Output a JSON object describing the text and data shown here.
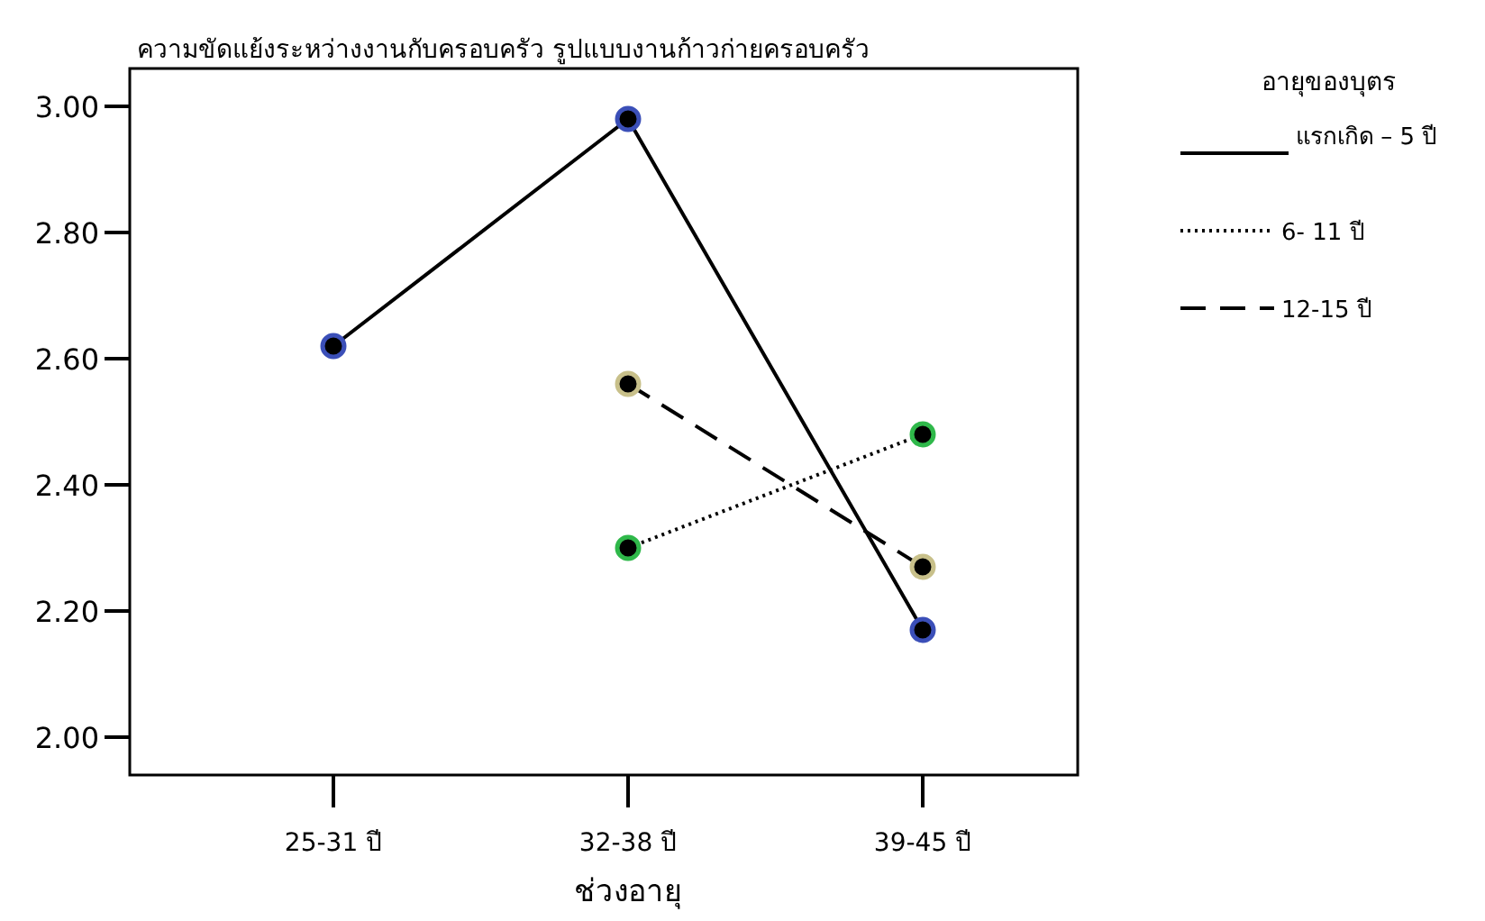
{
  "chart_data": {
    "type": "line",
    "title": "ความขัดแย้งระหว่างงานกับครอบครัว รูปแบบงานก้าวก่ายครอบครัว",
    "xlabel": "ช่วงอายุ",
    "legend_title": "อายุของบุตร",
    "categories": [
      "25-31 ปี",
      "32-38 ปี",
      "39-45 ปี"
    ],
    "series": [
      {
        "name": "แรกเกิด – 5 ปี",
        "color": "#000000",
        "colors": [
          "#3b4fb8",
          "#3b4fb8",
          "#3b4fb8"
        ],
        "line_style": "solid",
        "values": [
          2.62,
          2.98,
          2.17
        ]
      },
      {
        "name": "6- 11 ปี",
        "color": "#000000",
        "colors": [
          null,
          "#2fb84a",
          "#2fb84a"
        ],
        "line_style": "dotted",
        "values": [
          null,
          2.3,
          2.48
        ]
      },
      {
        "name": "12-15 ปี",
        "color": "#000000",
        "colors": [
          null,
          "#c8c08a",
          "#c8c08a"
        ],
        "line_style": "dashed",
        "values": [
          null,
          2.56,
          2.27
        ]
      }
    ],
    "ylim": [
      1.94,
      3.06
    ],
    "yticks": [
      {
        "value": 2.0,
        "label": "2.00"
      },
      {
        "value": 2.2,
        "label": "2.20"
      },
      {
        "value": 2.4,
        "label": "2.40"
      },
      {
        "value": 2.6,
        "label": "2.60"
      },
      {
        "value": 2.8,
        "label": "2.80"
      },
      {
        "value": 3.0,
        "label": "3.00"
      }
    ],
    "marker": "circle",
    "grid": false,
    "legend": "right"
  }
}
